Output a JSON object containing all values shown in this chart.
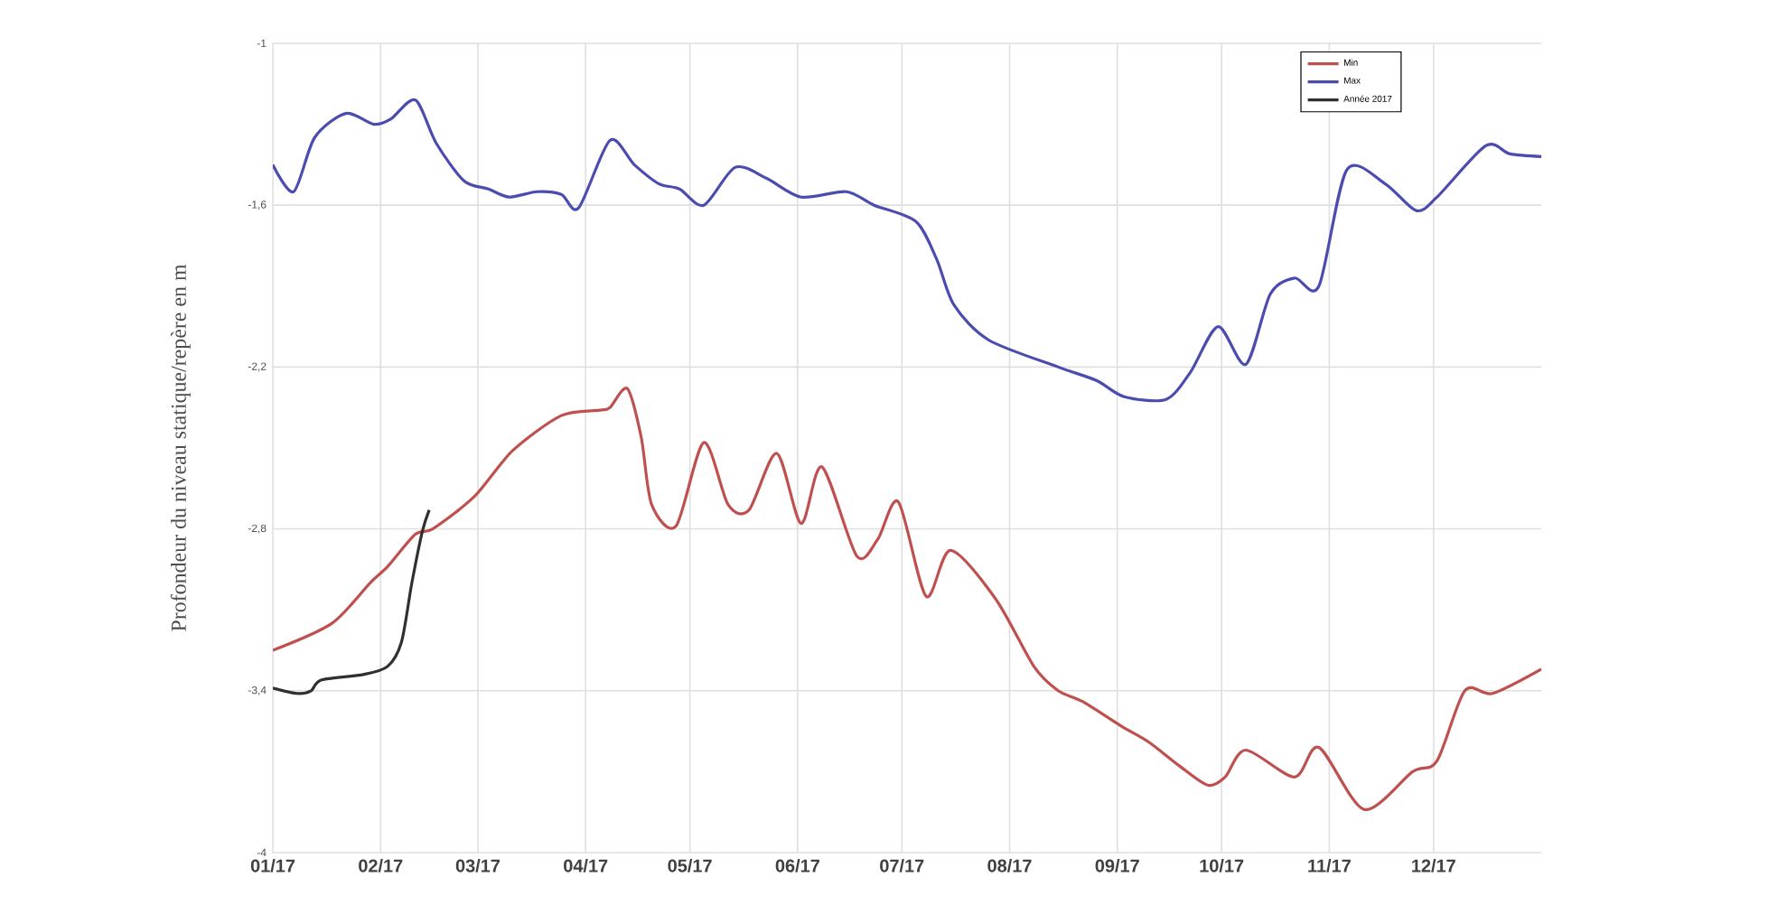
{
  "chart_data": {
    "type": "line",
    "ylabel": "Profondeur du niveau statique/repère en m",
    "xlim": [
      "2017-01-01",
      "2018-01-01"
    ],
    "ylim": [
      -4,
      -1
    ],
    "xticks": [
      {
        "value": "2017-01-01",
        "label": "01/17"
      },
      {
        "value": "2017-02-01",
        "label": "02/17"
      },
      {
        "value": "2017-03-01",
        "label": "03/17"
      },
      {
        "value": "2017-04-01",
        "label": "04/17"
      },
      {
        "value": "2017-05-01",
        "label": "05/17"
      },
      {
        "value": "2017-06-01",
        "label": "06/17"
      },
      {
        "value": "2017-07-01",
        "label": "07/17"
      },
      {
        "value": "2017-08-01",
        "label": "08/17"
      },
      {
        "value": "2017-09-01",
        "label": "09/17"
      },
      {
        "value": "2017-10-01",
        "label": "10/17"
      },
      {
        "value": "2017-11-01",
        "label": "11/17"
      },
      {
        "value": "2017-12-01",
        "label": "12/17"
      }
    ],
    "yticks": [
      {
        "value": -4,
        "label": "-4"
      },
      {
        "value": -3.4,
        "label": "-3,4"
      },
      {
        "value": -2.8,
        "label": "-2,8"
      },
      {
        "value": -2.2,
        "label": "-2,2"
      },
      {
        "value": -1.6,
        "label": "-1,6"
      },
      {
        "value": -1,
        "label": "-1"
      }
    ],
    "grid": true,
    "legend": "top right",
    "marker": "none",
    "line_style": "solid",
    "series": [
      {
        "name": "Min",
        "color": "#c05050",
        "x": [
          "2017-01-01",
          "2017-01-18",
          "2017-01-29",
          "2017-02-03",
          "2017-02-11",
          "2017-02-16",
          "2017-02-28",
          "2017-03-11",
          "2017-03-25",
          "2017-04-05",
          "2017-04-08",
          "2017-04-13",
          "2017-04-17",
          "2017-04-20",
          "2017-04-27",
          "2017-05-05",
          "2017-05-12",
          "2017-05-18",
          "2017-05-26",
          "2017-06-02",
          "2017-06-08",
          "2017-06-18",
          "2017-06-24",
          "2017-06-30",
          "2017-07-08",
          "2017-07-15",
          "2017-07-28",
          "2017-08-08",
          "2017-08-15",
          "2017-08-22",
          "2017-09-02",
          "2017-09-10",
          "2017-09-19",
          "2017-09-27",
          "2017-10-02",
          "2017-10-08",
          "2017-10-22",
          "2017-10-29",
          "2017-11-11",
          "2017-11-25",
          "2017-12-02",
          "2017-12-10",
          "2017-12-18",
          "2018-01-01"
        ],
        "values": [
          -3.25,
          -3.15,
          -3.0,
          -2.94,
          -2.82,
          -2.8,
          -2.68,
          -2.51,
          -2.38,
          -2.36,
          -2.35,
          -2.28,
          -2.46,
          -2.71,
          -2.79,
          -2.48,
          -2.71,
          -2.73,
          -2.52,
          -2.78,
          -2.57,
          -2.9,
          -2.84,
          -2.7,
          -3.05,
          -2.88,
          -3.06,
          -3.31,
          -3.4,
          -3.44,
          -3.53,
          -3.59,
          -3.68,
          -3.75,
          -3.72,
          -3.62,
          -3.72,
          -3.61,
          -3.84,
          -3.7,
          -3.66,
          -3.4,
          -3.41,
          -3.32
        ]
      },
      {
        "name": "Max",
        "color": "#4b4bb0",
        "x": [
          "2017-01-01",
          "2017-01-07",
          "2017-01-13",
          "2017-01-22",
          "2017-01-30",
          "2017-02-04",
          "2017-02-11",
          "2017-02-17",
          "2017-02-25",
          "2017-03-04",
          "2017-03-10",
          "2017-03-18",
          "2017-03-25",
          "2017-03-30",
          "2017-04-08",
          "2017-04-15",
          "2017-04-22",
          "2017-04-28",
          "2017-05-05",
          "2017-05-14",
          "2017-05-23",
          "2017-06-02",
          "2017-06-15",
          "2017-06-23",
          "2017-07-05",
          "2017-07-11",
          "2017-07-16",
          "2017-07-26",
          "2017-08-15",
          "2017-08-26",
          "2017-09-03",
          "2017-09-15",
          "2017-09-22",
          "2017-09-30",
          "2017-10-08",
          "2017-10-15",
          "2017-10-22",
          "2017-10-29",
          "2017-11-06",
          "2017-11-17",
          "2017-11-26",
          "2017-12-02",
          "2017-12-16",
          "2017-12-23",
          "2018-01-01"
        ],
        "values": [
          -1.45,
          -1.55,
          -1.35,
          -1.26,
          -1.3,
          -1.28,
          -1.21,
          -1.37,
          -1.51,
          -1.54,
          -1.57,
          -1.55,
          -1.56,
          -1.61,
          -1.36,
          -1.45,
          -1.52,
          -1.54,
          -1.6,
          -1.46,
          -1.5,
          -1.57,
          -1.55,
          -1.6,
          -1.66,
          -1.8,
          -1.97,
          -2.1,
          -2.2,
          -2.25,
          -2.31,
          -2.32,
          -2.22,
          -2.05,
          -2.19,
          -1.93,
          -1.87,
          -1.9,
          -1.47,
          -1.52,
          -1.62,
          -1.57,
          -1.38,
          -1.41,
          -1.42
        ]
      },
      {
        "name": "Année 2017",
        "color": "#303030",
        "x": [
          "2017-01-01",
          "2017-01-08",
          "2017-01-12",
          "2017-01-15",
          "2017-01-27",
          "2017-02-03",
          "2017-02-07",
          "2017-02-10",
          "2017-02-13",
          "2017-02-15"
        ],
        "values": [
          -3.39,
          -3.41,
          -3.4,
          -3.36,
          -3.34,
          -3.31,
          -3.22,
          -3.0,
          -2.81,
          -2.73
        ]
      }
    ]
  }
}
